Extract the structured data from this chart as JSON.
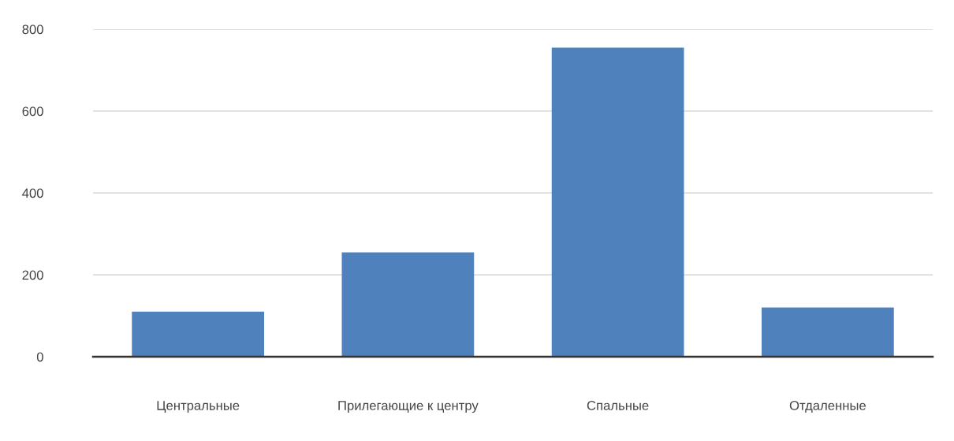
{
  "chart_data": {
    "type": "bar",
    "categories": [
      "Центральные",
      "Прилегающие к центру",
      "Спальные",
      "Отдаленные"
    ],
    "values": [
      110,
      255,
      755,
      120
    ],
    "color": "#4f81bd",
    "ylim": [
      0,
      800
    ],
    "yticks": [
      0,
      200,
      400,
      600,
      800
    ],
    "grid": "y",
    "legend": false
  }
}
